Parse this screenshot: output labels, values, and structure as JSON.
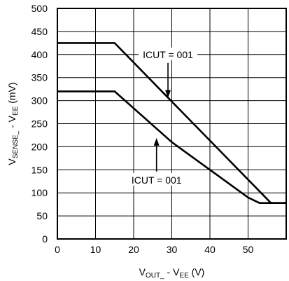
{
  "chart_data": {
    "type": "line",
    "title": "",
    "xlabel": {
      "main": "V",
      "sub": "OUT_",
      "rest": " - V",
      "sub2": "EE",
      "end": " (V)"
    },
    "ylabel": {
      "main": "V",
      "sub": "SENSE_",
      "rest": " - V",
      "sub2": "EE",
      "end": " (mV)"
    },
    "xlim": [
      0,
      60
    ],
    "ylim": [
      0,
      500
    ],
    "xticks": [
      0,
      10,
      20,
      30,
      40,
      50
    ],
    "yticks": [
      0,
      50,
      100,
      150,
      200,
      250,
      300,
      350,
      400,
      450,
      500
    ],
    "grid": true,
    "series": [
      {
        "points": [
          [
            0,
            425
          ],
          [
            15,
            425
          ],
          [
            56,
            78
          ],
          [
            60,
            78
          ]
        ]
      },
      {
        "points": [
          [
            0,
            320
          ],
          [
            15,
            320
          ],
          [
            30,
            210
          ],
          [
            50,
            90
          ],
          [
            53,
            78
          ],
          [
            60,
            78
          ]
        ]
      }
    ],
    "annotations": [
      {
        "text": "ICUT = 001",
        "label_at": [
          29,
          400
        ],
        "arrow_to": [
          29,
          303
        ]
      },
      {
        "text": "ICUT = 001",
        "label_at": [
          26,
          128
        ],
        "arrow_to": [
          26,
          222
        ]
      }
    ]
  }
}
